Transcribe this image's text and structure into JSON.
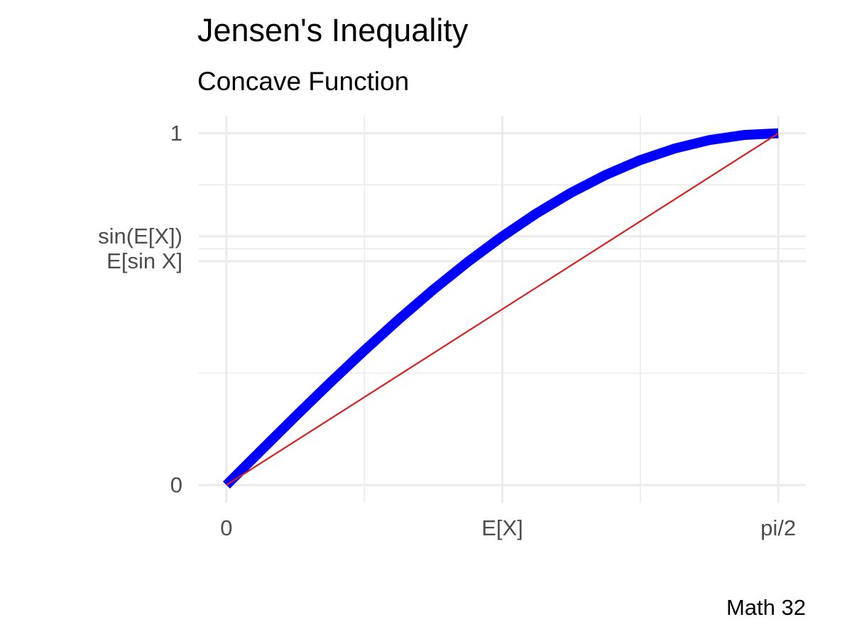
{
  "chart_data": {
    "type": "line",
    "title": "Jensen's Inequality",
    "subtitle": "Concave Function",
    "caption": "Math 32",
    "series": [
      {
        "color": "#0000ff",
        "x": [
          0,
          0.0982,
          0.1963,
          0.2945,
          0.3927,
          0.4909,
          0.589,
          0.6872,
          0.7854,
          0.8836,
          0.9817,
          1.0799,
          1.1781,
          1.2763,
          1.3744,
          1.4726,
          1.5708
        ],
        "values": [
          0,
          0.098,
          0.1951,
          0.2903,
          0.3827,
          0.4714,
          0.5556,
          0.6344,
          0.7071,
          0.773,
          0.8315,
          0.8819,
          0.9239,
          0.9569,
          0.9808,
          0.9952,
          1
        ]
      },
      {
        "color": "#d42020",
        "x": [
          0,
          1.5708
        ],
        "values": [
          0,
          1
        ]
      }
    ],
    "xlim": [
      -0.0785,
      1.6493
    ],
    "ylim": [
      -0.05,
      1.05
    ],
    "xticks": [
      0,
      {
        "value": 0.7854,
        "label": "E[X]"
      },
      {
        "value": 1.5708,
        "label": "pi/2"
      }
    ],
    "yticks": [
      0,
      {
        "value": 0.6366,
        "label": "E[sin X]"
      },
      {
        "value": 0.7071,
        "label": "sin(E[X])"
      },
      1
    ],
    "xminor": [
      0.3927,
      1.1781
    ],
    "yminor": [
      0.3183,
      0.6719,
      0.8536
    ],
    "grid": true
  }
}
